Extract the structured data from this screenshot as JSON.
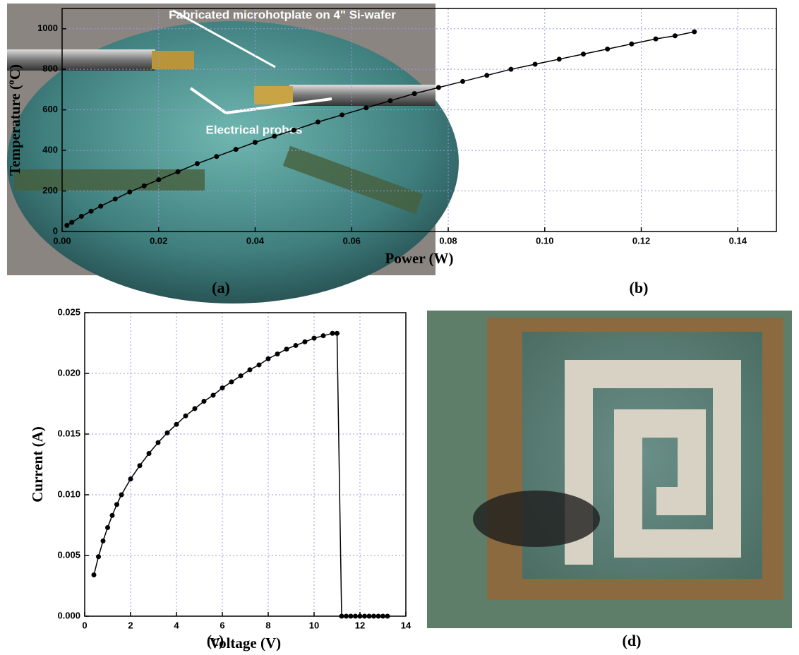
{
  "photo_a": {
    "annotations": [
      "Fabricated  microhotplate  on 4\"  Si-wafer",
      "Electrical probes"
    ],
    "panel_label": "(a)"
  },
  "photo_d": {
    "panel_label": "(d)"
  },
  "chart_data": [
    {
      "type": "scatter",
      "panel_label": "(b)",
      "x_label": "Power (W)",
      "y_label": "Temperature (ºC)",
      "color": "#000000",
      "connect": true,
      "grid": true,
      "grid_color": "#9999dd",
      "x": [
        0.001,
        0.002,
        0.004,
        0.006,
        0.008,
        0.011,
        0.014,
        0.017,
        0.02,
        0.024,
        0.028,
        0.032,
        0.036,
        0.04,
        0.044,
        0.048,
        0.053,
        0.058,
        0.063,
        0.068,
        0.073,
        0.078,
        0.083,
        0.088,
        0.093,
        0.098,
        0.103,
        0.108,
        0.113,
        0.118,
        0.123,
        0.127,
        0.131
      ],
      "values": [
        30,
        45,
        75,
        100,
        125,
        160,
        195,
        225,
        255,
        295,
        335,
        370,
        405,
        440,
        470,
        500,
        540,
        575,
        610,
        645,
        680,
        710,
        740,
        770,
        800,
        825,
        850,
        875,
        900,
        925,
        950,
        965,
        985
      ],
      "xlim": [
        0,
        0.148
      ],
      "ylim": [
        0,
        1100
      ],
      "xticks": [
        {
          "value": 0,
          "label": "0.00"
        },
        {
          "value": 0.02,
          "label": "0.02"
        },
        {
          "value": 0.04,
          "label": "0.04"
        },
        {
          "value": 0.06,
          "label": "0.06"
        },
        {
          "value": 0.08,
          "label": "0.08"
        },
        {
          "value": 0.1,
          "label": "0.10"
        },
        {
          "value": 0.12,
          "label": "0.12"
        },
        {
          "value": 0.14,
          "label": "0.14"
        }
      ],
      "yticks": [
        0,
        200,
        400,
        600,
        800,
        1000
      ]
    },
    {
      "type": "scatter",
      "panel_label": "(c)",
      "x_label": "Voltage (V)",
      "y_label": "Current (A)",
      "color": "#000000",
      "connect": true,
      "grid": true,
      "grid_color": "#9999dd",
      "x": [
        0.4,
        0.6,
        0.8,
        1.0,
        1.2,
        1.4,
        1.6,
        2.0,
        2.4,
        2.8,
        3.2,
        3.6,
        4.0,
        4.4,
        4.8,
        5.2,
        5.6,
        6.0,
        6.4,
        6.8,
        7.2,
        7.6,
        8.0,
        8.4,
        8.8,
        9.2,
        9.6,
        10.0,
        10.4,
        10.8,
        11.0,
        11.2,
        11.4,
        11.6,
        11.8,
        12.0,
        12.2,
        12.4,
        12.6,
        12.8,
        13.0,
        13.2
      ],
      "values": [
        0.0034,
        0.0049,
        0.0062,
        0.0073,
        0.0083,
        0.0092,
        0.01,
        0.0113,
        0.0124,
        0.0134,
        0.0143,
        0.0151,
        0.0158,
        0.0165,
        0.0171,
        0.0177,
        0.0182,
        0.0188,
        0.0193,
        0.0198,
        0.0203,
        0.0207,
        0.0212,
        0.0216,
        0.022,
        0.0223,
        0.0226,
        0.0229,
        0.0231,
        0.0233,
        0.0233,
        0,
        0,
        0,
        0,
        0,
        0,
        0,
        0,
        0,
        0,
        0
      ],
      "xlim": [
        0,
        14
      ],
      "ylim": [
        0,
        0.025
      ],
      "xticks": [
        0,
        2,
        4,
        6,
        8,
        10,
        12,
        14
      ],
      "yticks": [
        {
          "value": 0,
          "label": "0.000"
        },
        0.005,
        {
          "value": 0.01,
          "label": "0.010"
        },
        0.015,
        {
          "value": 0.02,
          "label": "0.020"
        },
        0.025
      ]
    }
  ]
}
